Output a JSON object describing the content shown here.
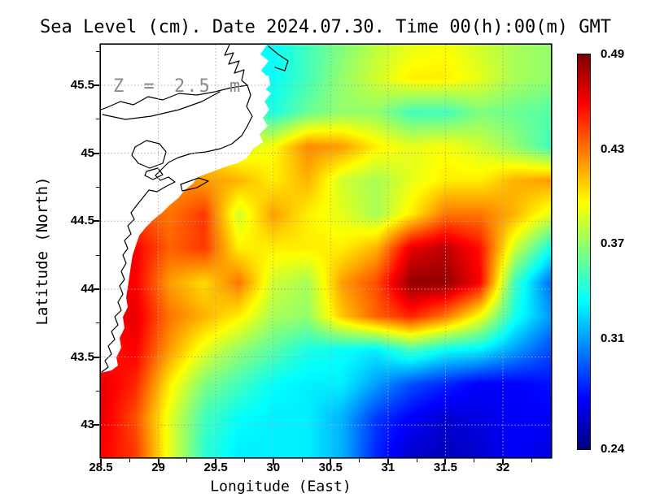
{
  "title": "Sea Level (cm). Date 2024.07.30. Time 00(h):00(m) GMT",
  "chart_data": {
    "type": "heatmap",
    "title": "Sea Level (cm). Date 2024.07.30. Time 00(h):00(m) GMT",
    "xlabel": "Longitude (East)",
    "ylabel": "Latitude (North)",
    "annotation": "Z = 2.5 m",
    "xlim": [
      28.5,
      32.418
    ],
    "ylim": [
      42.762,
      45.799
    ],
    "x_ticks": [
      28.5,
      29,
      29.5,
      30,
      30.5,
      31,
      31.5,
      32
    ],
    "y_ticks": [
      43,
      43.5,
      44,
      44.5,
      45,
      45.5
    ],
    "grid_on": true,
    "legend_position": "right-colorbar",
    "colorbar": {
      "colormap": "jet",
      "vmin": 0.24,
      "vmax": 0.49,
      "tick_values": [
        0.49,
        0.43,
        0.37,
        0.31,
        0.24
      ],
      "tick_labels": [
        "0.49",
        "0.43",
        "0.37",
        "0.31",
        "0.24"
      ]
    },
    "heat_grid": {
      "comment_units": "sea level (cm); null = land / no data",
      "lon": [
        28.5,
        28.8,
        29.1,
        29.4,
        29.7,
        30.0,
        30.3,
        30.6,
        30.9,
        31.2,
        31.5,
        31.8,
        32.1,
        32.4
      ],
      "lat": [
        45.8,
        45.55,
        45.3,
        45.05,
        44.8,
        44.55,
        44.3,
        44.05,
        43.8,
        43.55,
        43.3,
        43.05,
        42.8
      ],
      "values": [
        [
          null,
          null,
          null,
          null,
          null,
          0.335,
          0.35,
          0.365,
          0.38,
          0.39,
          0.395,
          0.385,
          0.375,
          0.37
        ],
        [
          null,
          null,
          null,
          null,
          null,
          0.335,
          0.35,
          0.37,
          0.385,
          0.4,
          0.4,
          0.39,
          0.375,
          0.37
        ],
        [
          null,
          null,
          null,
          null,
          null,
          0.34,
          0.36,
          0.37,
          0.37,
          0.35,
          0.35,
          0.365,
          0.36,
          0.355
        ],
        [
          null,
          null,
          null,
          null,
          0.385,
          0.395,
          0.425,
          0.42,
          0.4,
          0.39,
          0.395,
          0.385,
          0.37,
          0.35
        ],
        [
          null,
          null,
          null,
          0.42,
          0.415,
          0.4,
          0.415,
          0.385,
          0.375,
          0.39,
          0.4,
          0.4,
          0.415,
          0.42
        ],
        [
          null,
          0.44,
          0.43,
          0.445,
          0.385,
          0.42,
          0.4,
          0.39,
          0.375,
          0.4,
          0.43,
          0.43,
          0.415,
          0.39
        ],
        [
          null,
          0.46,
          0.435,
          0.445,
          0.4,
          0.4,
          0.4,
          0.4,
          0.415,
          0.465,
          0.475,
          0.455,
          0.385,
          0.34
        ],
        [
          null,
          0.46,
          0.42,
          0.405,
          0.43,
          0.385,
          0.375,
          0.42,
          0.44,
          0.485,
          0.485,
          0.46,
          0.35,
          0.3
        ],
        [
          null,
          0.465,
          0.43,
          0.415,
          0.4,
          0.375,
          0.37,
          0.41,
          0.435,
          0.45,
          0.43,
          0.395,
          0.34,
          0.31
        ],
        [
          0.45,
          0.46,
          0.42,
          0.39,
          0.37,
          0.355,
          0.34,
          0.335,
          0.33,
          0.35,
          0.335,
          0.33,
          0.31,
          0.29
        ],
        [
          0.465,
          0.45,
          0.4,
          0.365,
          0.35,
          0.335,
          0.33,
          0.33,
          0.31,
          0.29,
          0.28,
          0.27,
          0.27,
          0.275
        ],
        [
          0.465,
          0.44,
          0.39,
          0.35,
          0.335,
          0.33,
          0.33,
          0.315,
          0.285,
          0.27,
          0.26,
          0.265,
          0.27,
          0.27
        ],
        [
          0.46,
          0.445,
          0.39,
          0.345,
          0.33,
          0.33,
          0.33,
          0.315,
          0.28,
          0.26,
          0.255,
          0.26,
          0.27,
          0.265
        ]
      ]
    }
  }
}
